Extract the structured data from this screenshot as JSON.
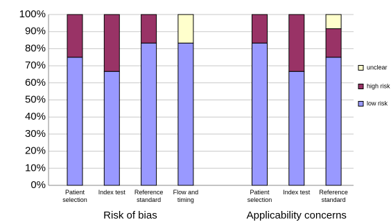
{
  "chart_data": {
    "type": "stacked_bar",
    "categories": [
      "Patient selection",
      "Index test",
      "Reference standard",
      "Flow and timing",
      null,
      "Patient selection",
      "Index test",
      "Reference standard"
    ],
    "group_labels": [
      "Risk of bias",
      "Applicability concerns"
    ],
    "series": [
      {
        "name": "low risk",
        "color": "#9999ff",
        "values": [
          75,
          66.7,
          83.3,
          83.3,
          null,
          83.3,
          66.7,
          75
        ]
      },
      {
        "name": "high risk",
        "color": "#993366",
        "values": [
          25,
          33.3,
          16.7,
          0,
          null,
          16.7,
          33.3,
          16.7
        ]
      },
      {
        "name": "unclear",
        "color": "#ffffcc",
        "values": [
          0,
          0,
          0,
          16.7,
          null,
          0,
          0,
          8.3
        ]
      }
    ],
    "ylim": [
      0,
      100
    ],
    "yticks": [
      {
        "value": 0,
        "label": "0%"
      },
      {
        "value": 10,
        "label": "10%"
      },
      {
        "value": 20,
        "label": "20%"
      },
      {
        "value": 30,
        "label": "30%"
      },
      {
        "value": 40,
        "label": "40%"
      },
      {
        "value": 50,
        "label": "50%"
      },
      {
        "value": 60,
        "label": "60%"
      },
      {
        "value": 70,
        "label": "70%"
      },
      {
        "value": 80,
        "label": "80%"
      },
      {
        "value": 90,
        "label": "90%"
      },
      {
        "value": 100,
        "label": "100%"
      }
    ],
    "grid": true
  }
}
